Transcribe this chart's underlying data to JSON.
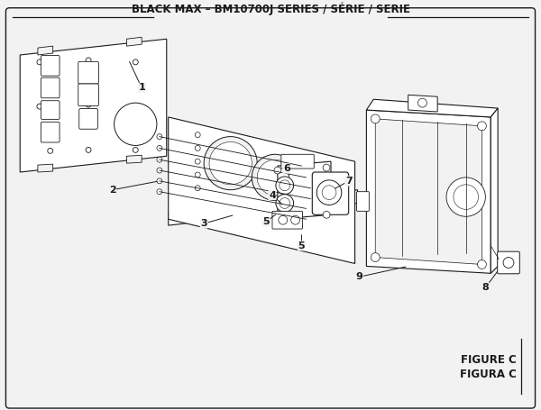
{
  "title": "BLACK MAX – BM10700J SERIES / SÉRIE / SERIE",
  "figure_label": "FIGURE C",
  "figura_label": "FIGURA C",
  "bg_color": "#f2f2f2",
  "line_color": "#1a1a1a",
  "text_color": "#1a1a1a",
  "title_fontsize": 8.5,
  "label_fontsize": 8,
  "figure_label_fontsize": 8.5
}
